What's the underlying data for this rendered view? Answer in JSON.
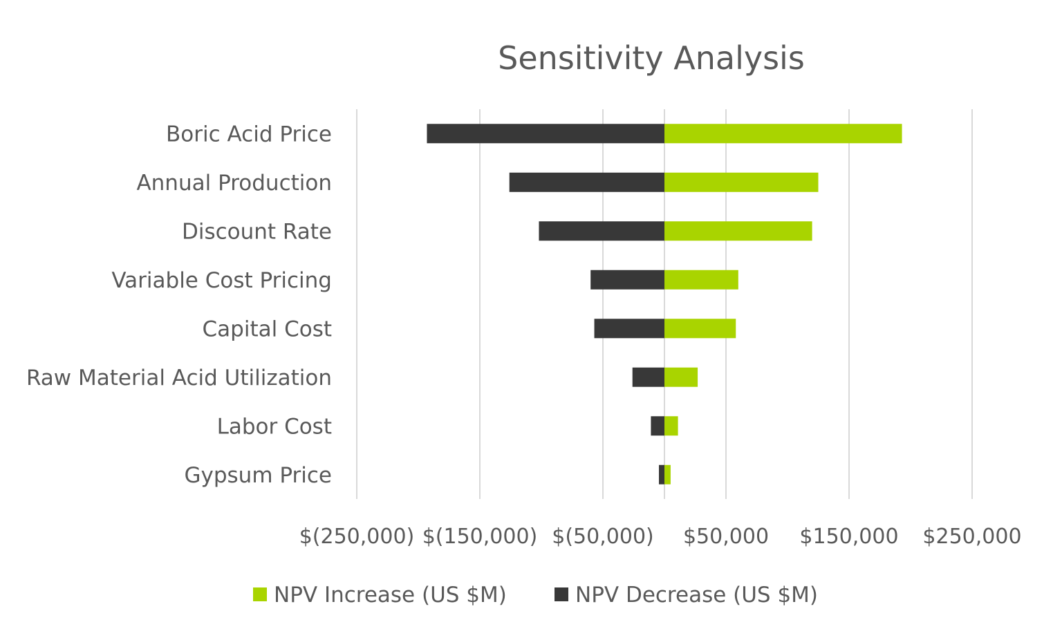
{
  "chart_data": {
    "type": "bar",
    "orientation": "horizontal",
    "subtype": "tornado",
    "title": "Sensitivity Analysis",
    "categories": [
      "Boric Acid Price",
      "Annual Production",
      "Discount Rate",
      "Variable Cost Pricing",
      "Capital Cost",
      "Raw Material Acid Utilization",
      "Labor Cost ",
      "Gypsum Price"
    ],
    "series": [
      {
        "name": "NPV Increase (US $M)",
        "color": "#A9D400",
        "values": [
          193000,
          125000,
          120000,
          60000,
          58000,
          27000,
          11000,
          5000
        ]
      },
      {
        "name": "NPV Decrease (US $M)",
        "color": "#383838",
        "values": [
          -193000,
          -126000,
          -102000,
          -60000,
          -57000,
          -26000,
          -11000,
          -4500
        ]
      }
    ],
    "xlim": [
      -250000,
      250000
    ],
    "xticks": [
      -250000,
      -150000,
      -50000,
      50000,
      150000,
      250000
    ],
    "xtick_labels": [
      "$(250,000)",
      "$(150,000)",
      "$(50,000)",
      "$50,000",
      "$150,000",
      "$250,000"
    ],
    "grid": true,
    "legend": "bottom"
  }
}
